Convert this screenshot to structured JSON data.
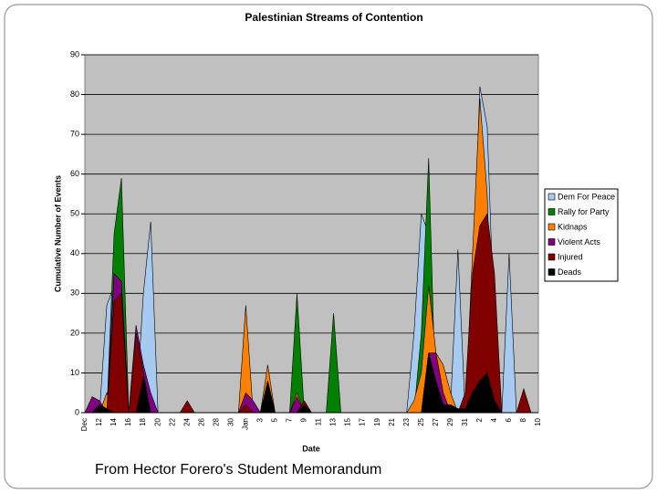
{
  "chart_data": {
    "type": "area",
    "title": "Palestinian Streams of Contention",
    "x_label": "Date",
    "y_label": "Cumulative Number of Events",
    "source": "From Hector Forero's Student Memorandum",
    "categories": [
      "Dec",
      null,
      "12",
      null,
      "14",
      null,
      "16",
      null,
      "18",
      null,
      "20",
      null,
      "22",
      null,
      "24",
      null,
      "26",
      null,
      "28",
      null,
      "30",
      null,
      "Jan",
      null,
      "3",
      null,
      "5",
      null,
      "7",
      null,
      "9",
      null,
      "11",
      null,
      "13",
      null,
      "15",
      null,
      "17",
      null,
      "19",
      null,
      "21",
      null,
      "23",
      null,
      "25",
      null,
      "27",
      null,
      "29",
      null,
      "31",
      null,
      "2",
      null,
      "4",
      null,
      "6",
      null,
      "8",
      null,
      "10"
    ],
    "ylim": [
      0,
      90
    ],
    "yticks": [
      0,
      10,
      20,
      30,
      40,
      50,
      60,
      70,
      80,
      90
    ],
    "grid": true,
    "legend": "right",
    "series": [
      {
        "name": "Dem For Peace",
        "color": "#a6caf0",
        "values": [
          0,
          0,
          0,
          27,
          32,
          0,
          0,
          0,
          30,
          48,
          0,
          0,
          0,
          0,
          0,
          0,
          0,
          0,
          0,
          0,
          0,
          0,
          0,
          0,
          0,
          11,
          0,
          0,
          0,
          0,
          0,
          0,
          0,
          0,
          0,
          0,
          0,
          0,
          0,
          0,
          0,
          0,
          0,
          0,
          0,
          20,
          50,
          45,
          0,
          0,
          2,
          41,
          0,
          30,
          82,
          72,
          20,
          0,
          40,
          0,
          0,
          0,
          0
        ]
      },
      {
        "name": "Rally for Party",
        "color": "#008000",
        "values": [
          0,
          0,
          0,
          0,
          45,
          59,
          0,
          0,
          0,
          0,
          0,
          0,
          0,
          0,
          0,
          0,
          0,
          0,
          0,
          0,
          0,
          0,
          0,
          0,
          0,
          0,
          0,
          0,
          0,
          30,
          0,
          0,
          0,
          0,
          25,
          0,
          0,
          0,
          0,
          0,
          0,
          0,
          0,
          0,
          0,
          0,
          20,
          64,
          0,
          0,
          0,
          0,
          0,
          0,
          0,
          0,
          0,
          0,
          0,
          0,
          0,
          0,
          0
        ]
      },
      {
        "name": "Kidnaps",
        "color": "#ff8000",
        "values": [
          0,
          0,
          0,
          5,
          0,
          0,
          0,
          0,
          0,
          0,
          0,
          0,
          0,
          0,
          0,
          0,
          0,
          0,
          0,
          0,
          0,
          0,
          27,
          0,
          0,
          12,
          0,
          0,
          0,
          5,
          0,
          0,
          0,
          0,
          0,
          0,
          0,
          0,
          0,
          0,
          0,
          0,
          0,
          0,
          0,
          3,
          10,
          32,
          15,
          12,
          5,
          0,
          0,
          40,
          79,
          55,
          0,
          0,
          0,
          0,
          0,
          0,
          0
        ]
      },
      {
        "name": "Violent Acts",
        "color": "#800080",
        "values": [
          0,
          4,
          3,
          0,
          35,
          33,
          0,
          22,
          12,
          5,
          0,
          0,
          0,
          0,
          0,
          0,
          0,
          0,
          0,
          0,
          0,
          0,
          5,
          3,
          0,
          8,
          0,
          0,
          0,
          4,
          0,
          0,
          0,
          0,
          0,
          0,
          0,
          0,
          0,
          0,
          0,
          0,
          0,
          0,
          0,
          0,
          0,
          15,
          15,
          5,
          0,
          0,
          0,
          0,
          0,
          0,
          0,
          0,
          0,
          0,
          0,
          0,
          0
        ]
      },
      {
        "name": "Injured",
        "color": "#800000",
        "values": [
          0,
          0,
          0,
          0,
          28,
          30,
          0,
          20,
          10,
          0,
          0,
          0,
          0,
          0,
          3,
          0,
          0,
          0,
          0,
          0,
          0,
          0,
          2,
          0,
          0,
          7,
          0,
          0,
          0,
          0,
          3,
          0,
          0,
          0,
          0,
          0,
          0,
          0,
          0,
          0,
          0,
          0,
          0,
          0,
          0,
          0,
          0,
          15,
          0,
          0,
          0,
          0,
          5,
          35,
          47,
          50,
          35,
          0,
          0,
          0,
          6,
          0,
          0
        ]
      },
      {
        "name": "Deads",
        "color": "#000000",
        "values": [
          0,
          0,
          2,
          1,
          0,
          0,
          0,
          0,
          9,
          0,
          0,
          0,
          0,
          0,
          0,
          0,
          0,
          0,
          0,
          0,
          0,
          0,
          0,
          0,
          0,
          8,
          0,
          0,
          0,
          0,
          2,
          0,
          0,
          0,
          0,
          0,
          0,
          0,
          0,
          0,
          0,
          0,
          0,
          0,
          0,
          0,
          0,
          15,
          8,
          2,
          2,
          1,
          1,
          5,
          8,
          10,
          3,
          0,
          0,
          0,
          0,
          0,
          0
        ]
      }
    ]
  }
}
